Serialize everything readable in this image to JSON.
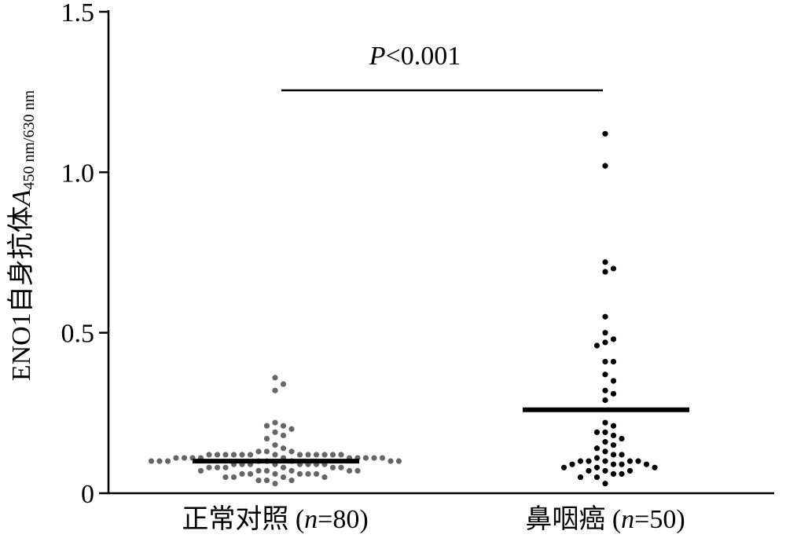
{
  "chart_data": {
    "type": "dotplot",
    "annotation": {
      "italic": "P",
      "text": "<0.001"
    },
    "y_label": {
      "text": "ENO1自身抗体",
      "var": "A",
      "subscript": "450 nm/630 nm"
    },
    "ylim": [
      0,
      1.5
    ],
    "yticks": [
      0,
      0.5,
      {
        "value": 1,
        "label": "1.0"
      },
      1.5
    ],
    "groups": [
      {
        "label": {
          "name": "正常对照 (",
          "italic": "n",
          "rest": "=80)"
        },
        "color": "#666666",
        "mean": 0.1,
        "values": [
          0.36,
          0.34,
          0.32,
          0.22,
          0.21,
          0.21,
          0.2,
          0.19,
          0.18,
          0.17,
          0.15,
          0.14,
          0.13,
          0.13,
          0.13,
          0.12,
          0.12,
          0.12,
          0.12,
          0.12,
          0.12,
          0.12,
          0.12,
          0.12,
          0.12,
          0.12,
          0.12,
          0.12,
          0.11,
          0.11,
          0.11,
          0.11,
          0.11,
          0.11,
          0.11,
          0.11,
          0.11,
          0.11,
          0.1,
          0.1,
          0.1,
          0.1,
          0.1,
          0.1,
          0.1,
          0.1,
          0.09,
          0.09,
          0.09,
          0.09,
          0.09,
          0.09,
          0.09,
          0.09,
          0.08,
          0.08,
          0.08,
          0.08,
          0.08,
          0.08,
          0.07,
          0.07,
          0.07,
          0.07,
          0.07,
          0.07,
          0.06,
          0.06,
          0.06,
          0.06,
          0.06,
          0.06,
          0.05,
          0.05,
          0.05,
          0.05,
          0.04,
          0.04,
          0.04,
          0.03
        ]
      },
      {
        "label": {
          "name": "鼻咽癌 (",
          "italic": "n",
          "rest": "=50)"
        },
        "color": "#000000",
        "mean": 0.26,
        "values": [
          1.12,
          1.02,
          0.72,
          0.7,
          0.69,
          0.55,
          0.5,
          0.48,
          0.47,
          0.46,
          0.41,
          0.41,
          0.37,
          0.35,
          0.32,
          0.31,
          0.29,
          0.22,
          0.21,
          0.19,
          0.19,
          0.18,
          0.17,
          0.16,
          0.15,
          0.14,
          0.13,
          0.12,
          0.12,
          0.11,
          0.1,
          0.1,
          0.1,
          0.1,
          0.1,
          0.09,
          0.09,
          0.09,
          0.09,
          0.08,
          0.08,
          0.08,
          0.07,
          0.07,
          0.07,
          0.06,
          0.06,
          0.05,
          0.05,
          0.03
        ]
      }
    ]
  }
}
